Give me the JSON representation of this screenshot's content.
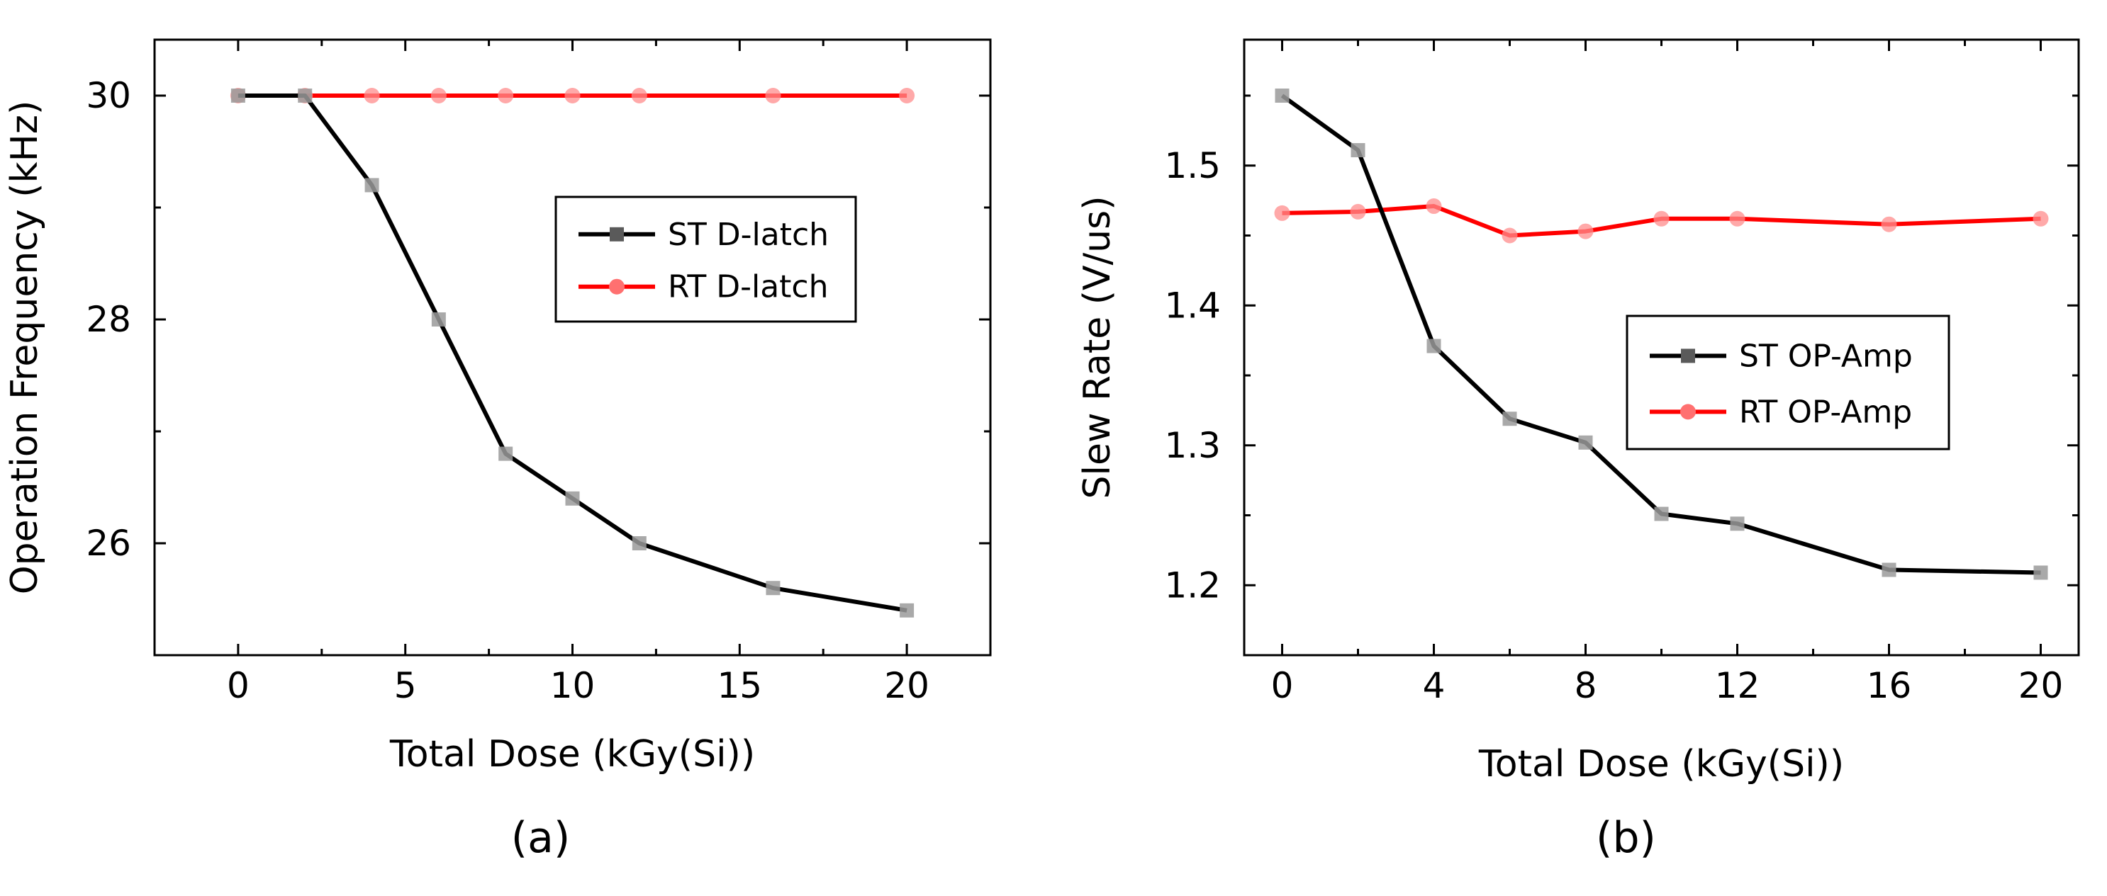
{
  "chart_data": [
    {
      "type": "line",
      "panel_label": "(a)",
      "xlabel": "Total Dose (kGy(Si))",
      "ylabel": "Operation Frequency (kHz)",
      "xlim": [
        -2.5,
        22.5
      ],
      "ylim": [
        25.0,
        30.5
      ],
      "xticks": [
        0,
        5,
        10,
        15,
        20
      ],
      "xminor": [
        2.5,
        7.5,
        12.5,
        17.5
      ],
      "yticks": [
        26,
        28,
        30
      ],
      "yminor": [
        25,
        27,
        29
      ],
      "legend_position": "right-middle",
      "series": [
        {
          "name": "ST D-latch",
          "color": "#000000",
          "marker": "square",
          "x": [
            0,
            2,
            4,
            6,
            8,
            10,
            12,
            16,
            20
          ],
          "y": [
            30.0,
            30.0,
            29.2,
            28.0,
            26.8,
            26.4,
            26.0,
            25.6,
            25.4
          ]
        },
        {
          "name": "RT D-latch",
          "color": "#ff0000",
          "marker": "circle",
          "x": [
            0,
            2,
            4,
            6,
            8,
            10,
            12,
            16,
            20
          ],
          "y": [
            30.0,
            30.0,
            30.0,
            30.0,
            30.0,
            30.0,
            30.0,
            30.0,
            30.0
          ]
        }
      ]
    },
    {
      "type": "line",
      "panel_label": "(b)",
      "xlabel": "Total Dose (kGy(Si))",
      "ylabel": "Slew Rate (V/us)",
      "xlim": [
        -1,
        21
      ],
      "ylim": [
        1.15,
        1.59
      ],
      "xticks": [
        0,
        4,
        8,
        12,
        16,
        20
      ],
      "xminor": [
        2,
        6,
        10,
        14,
        18
      ],
      "yticks": [
        1.2,
        1.3,
        1.4,
        1.5
      ],
      "yminor": [
        1.25,
        1.35,
        1.45,
        1.55
      ],
      "legend_position": "right-middle",
      "series": [
        {
          "name": "ST OP-Amp",
          "color": "#000000",
          "marker": "square",
          "x": [
            0,
            2,
            4,
            6,
            8,
            10,
            12,
            16,
            20
          ],
          "y": [
            1.55,
            1.511,
            1.371,
            1.319,
            1.302,
            1.251,
            1.244,
            1.211,
            1.209
          ]
        },
        {
          "name": "RT OP-Amp",
          "color": "#ff0000",
          "marker": "circle",
          "x": [
            0,
            2,
            4,
            6,
            8,
            10,
            12,
            16,
            20
          ],
          "y": [
            1.466,
            1.467,
            1.471,
            1.45,
            1.453,
            1.462,
            1.462,
            1.458,
            1.462
          ]
        }
      ]
    }
  ]
}
